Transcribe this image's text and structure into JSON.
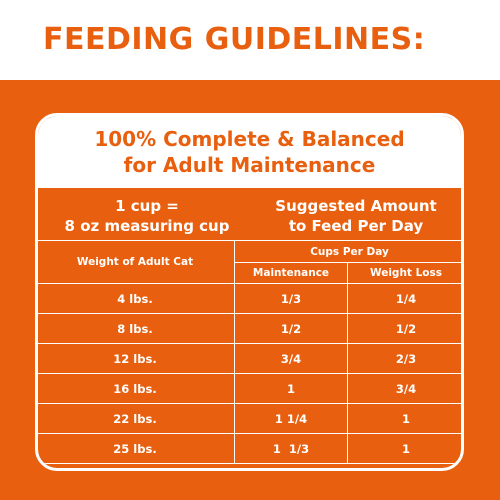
{
  "heading": "FEEDING GUIDELINES:",
  "card": {
    "title_line1": "100% Complete & Balanced",
    "title_line2": "for Adult Maintenance",
    "note_line1": "1 cup =",
    "note_line2": "8 oz measuring cup",
    "suggest_line1": "Suggested Amount",
    "suggest_line2": "to Feed Per Day"
  },
  "table": {
    "weight_header": "Weight of Adult Cat",
    "cups_header": "Cups Per Day",
    "maintenance_header": "Maintenance",
    "weight_loss_header": "Weight Loss",
    "rows": [
      {
        "weight": "4 lbs.",
        "maintenance": "1/3",
        "weight_loss": "1/4"
      },
      {
        "weight": "8 lbs.",
        "maintenance": "1/2",
        "weight_loss": "1/2"
      },
      {
        "weight": "12 lbs.",
        "maintenance": "3/4",
        "weight_loss": "2/3"
      },
      {
        "weight": "16 lbs.",
        "maintenance": "1",
        "weight_loss": "3/4"
      },
      {
        "weight": "22 lbs.",
        "maintenance": "1 1/4",
        "weight_loss": "1"
      },
      {
        "weight": "25 lbs.",
        "maintenance": "1  1/3",
        "weight_loss": "1"
      }
    ]
  },
  "colors": {
    "brand_orange": "#e8600f",
    "white": "#ffffff"
  }
}
